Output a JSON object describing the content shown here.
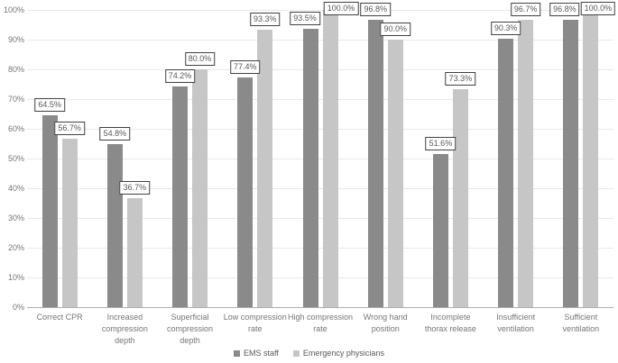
{
  "chart_data": {
    "type": "bar",
    "title": "",
    "xlabel": "",
    "ylabel": "",
    "ylim": [
      0,
      100
    ],
    "ytick_step": 10,
    "ytick_labels": [
      "0%",
      "10%",
      "20%",
      "30%",
      "40%",
      "50%",
      "60%",
      "70%",
      "80%",
      "90%",
      "100%"
    ],
    "grid": true,
    "legend_position": "bottom",
    "label_suffix": "%",
    "categories": [
      {
        "label": "Correct CPR",
        "lines": [
          "Correct CPR"
        ]
      },
      {
        "label": "Increased compression depth",
        "lines": [
          "Increased",
          "compression",
          "depth"
        ]
      },
      {
        "label": "Superficial compression depth",
        "lines": [
          "Superficial",
          "compression",
          "depth"
        ]
      },
      {
        "label": "Low compression rate",
        "lines": [
          "Low compression",
          "rate"
        ]
      },
      {
        "label": "High compression rate",
        "lines": [
          "High compression",
          "rate"
        ]
      },
      {
        "label": "Wrong hand position",
        "lines": [
          "Wrong hand",
          "position"
        ]
      },
      {
        "label": "Incomplete thorax release",
        "lines": [
          "Incomplete",
          "thorax release"
        ]
      },
      {
        "label": "Insufficient ventilation",
        "lines": [
          "Insufficient",
          "ventilation"
        ]
      },
      {
        "label": "Sufficient ventilation",
        "lines": [
          "Sufficient",
          "ventilation"
        ]
      }
    ],
    "series": [
      {
        "name": "EMS staff",
        "color": "#8a8a8a",
        "values": [
          64.5,
          54.8,
          74.2,
          77.4,
          93.5,
          96.8,
          51.6,
          90.3,
          96.8
        ],
        "value_labels": [
          "64.5%",
          "54.8%",
          "74.2%",
          "77.4%",
          "93.5%",
          "96.8%",
          "51.6%",
          "90.3%",
          "96.8%"
        ]
      },
      {
        "name": "Emergency physicians",
        "color": "#c6c6c6",
        "values": [
          56.7,
          36.7,
          80.0,
          93.3,
          100.0,
          90.0,
          73.3,
          96.7,
          100.0
        ],
        "value_labels": [
          "56.7%",
          "36.7%",
          "80.0%",
          "93.3%",
          "100.0%",
          "90.0%",
          "73.3%",
          "96.7%",
          "100.0%"
        ]
      }
    ],
    "label_dx": [
      [
        0,
        0,
        0,
        0,
        -6,
        0,
        0,
        0,
        -7
      ],
      [
        0,
        0,
        0,
        0,
        12,
        0,
        0,
        0,
        8
      ]
    ],
    "colors": {
      "gridline": "#e9e9e9",
      "axis_line": "#b0b0b0",
      "tick_text": "#767676",
      "label_text": "#595959",
      "label_border": "#404040",
      "background": "#ffffff"
    }
  }
}
